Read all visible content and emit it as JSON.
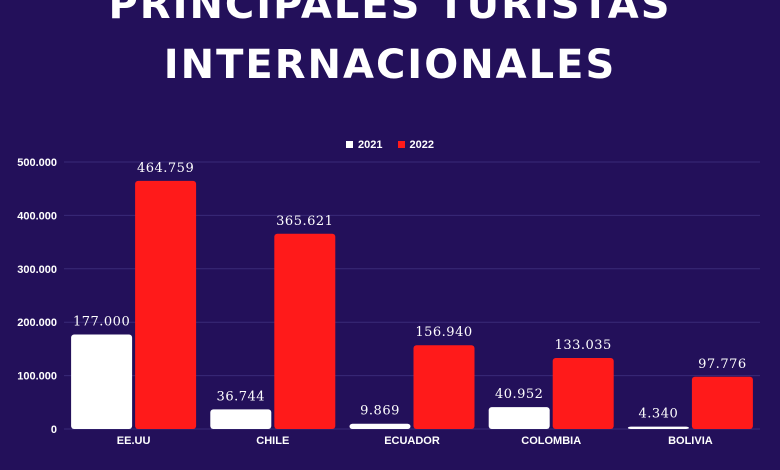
{
  "chart_data": {
    "type": "bar",
    "title_lines": [
      "PRINCIPALES  TURISTAS",
      "INTERNACIONALES"
    ],
    "categories": [
      "EE.UU",
      "CHILE",
      "ECUADOR",
      "COLOMBIA",
      "BOLIVIA"
    ],
    "series": [
      {
        "name": "2021",
        "color": "#ffffff",
        "values": [
          177000,
          36744,
          9869,
          40952,
          4340
        ],
        "labels": [
          "177.000",
          "36.744",
          "9.869",
          "40.952",
          "4.340"
        ]
      },
      {
        "name": "2022",
        "color": "#ff1a1a",
        "values": [
          464759,
          365621,
          156940,
          133035,
          97776
        ],
        "labels": [
          "464.759",
          "365.621",
          "156.940",
          "133.035",
          "97.776"
        ]
      }
    ],
    "y_ticks": [
      0,
      100000,
      200000,
      300000,
      400000,
      500000
    ],
    "y_tick_labels": [
      "0",
      "100.000",
      "200.000",
      "300.000",
      "400.000",
      "500.000"
    ],
    "ylim": [
      0,
      500000
    ],
    "grid": true,
    "legend_position": "top"
  },
  "colors": {
    "background": "#23105a",
    "grid": "#3a2a78"
  }
}
